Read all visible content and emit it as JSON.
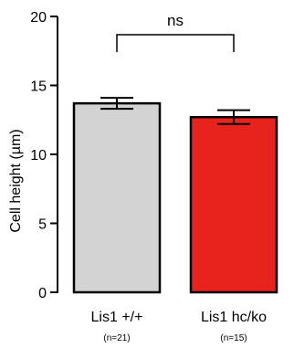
{
  "chart_data": {
    "type": "bar",
    "ylabel": "Cell height (µm)",
    "ylim": [
      0,
      20
    ],
    "yticks": [
      "0",
      "5",
      "10",
      "15",
      "20"
    ],
    "categories": [
      "Lis1 +/+",
      "Lis1 hc/ko"
    ],
    "sample_sizes": [
      "(n=21)",
      "(n=15)"
    ],
    "values": [
      13.7,
      12.7
    ],
    "errors": [
      0.4,
      0.5
    ],
    "bar_colors": [
      "#d3d3d3",
      "#e8231e"
    ],
    "significance": {
      "label": "ns",
      "between": [
        0,
        1
      ]
    },
    "grid": false,
    "legend": "none"
  }
}
